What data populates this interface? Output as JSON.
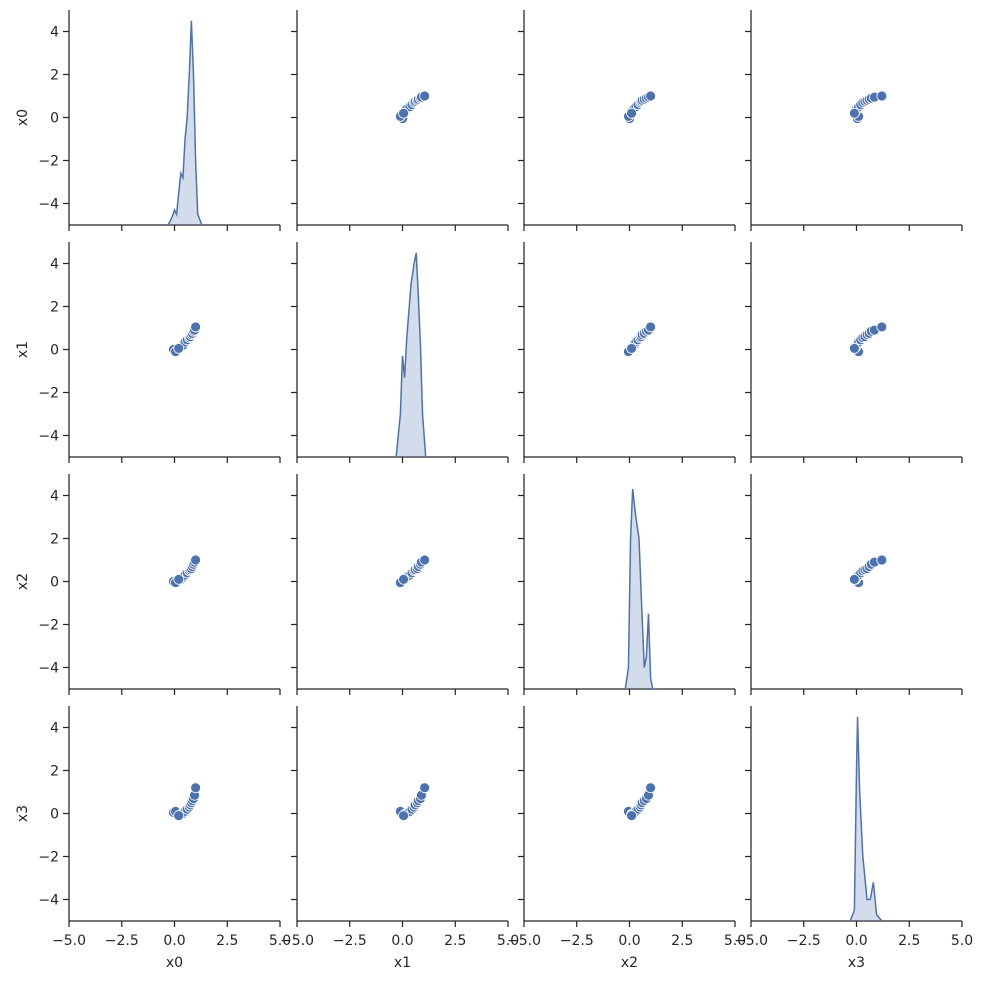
{
  "chart_data": {
    "type": "pairplot",
    "variables": [
      "x0",
      "x1",
      "x2",
      "x3"
    ],
    "color": "#4c72b0",
    "xlim": [
      -5,
      5
    ],
    "ylim": [
      -5,
      5
    ],
    "xticks": [
      {
        "value": -5,
        "label": "−5.0"
      },
      {
        "value": -2.5,
        "label": "−2.5"
      },
      {
        "value": 0,
        "label": "0.0"
      },
      {
        "value": 2.5,
        "label": "2.5"
      },
      {
        "value": 5,
        "label": "5.0"
      }
    ],
    "yticks": [
      {
        "value": -4,
        "label": "−4"
      },
      {
        "value": -2,
        "label": "−2"
      },
      0,
      2,
      4
    ],
    "samples": [
      {
        "name": "x0",
        "values": [
          -0.05,
          0.05,
          0.3,
          0.4,
          0.5,
          0.6,
          0.7,
          0.75,
          0.8,
          0.85,
          0.9,
          0.95,
          1.0,
          0.2
        ]
      },
      {
        "name": "x1",
        "values": [
          0.0,
          -0.1,
          0.1,
          0.2,
          0.35,
          0.45,
          0.55,
          0.6,
          0.7,
          0.75,
          0.85,
          0.9,
          1.05,
          0.05
        ]
      },
      {
        "name": "x2",
        "values": [
          0.0,
          -0.05,
          0.1,
          0.2,
          0.3,
          0.4,
          0.5,
          0.55,
          0.6,
          0.7,
          0.8,
          0.9,
          1.0,
          0.1
        ]
      },
      {
        "name": "x3",
        "values": [
          0.05,
          0.1,
          -0.05,
          0.0,
          0.1,
          0.2,
          0.3,
          0.4,
          0.5,
          0.6,
          0.7,
          0.85,
          1.2,
          -0.1
        ]
      }
    ],
    "kde": [
      {
        "x": [
          -0.3,
          -0.1,
          0,
          0.1,
          0.2,
          0.3,
          0.4,
          0.5,
          0.6,
          0.7,
          0.8,
          0.9,
          1.0,
          1.1,
          1.3
        ],
        "y": [
          -5,
          -4.6,
          -4.3,
          -4.5,
          -3.5,
          -2.6,
          -2.8,
          -1,
          0,
          2,
          4.5,
          2,
          -2,
          -4.5,
          -5
        ]
      },
      {
        "x": [
          -0.3,
          -0.1,
          0,
          0.1,
          0.2,
          0.4,
          0.55,
          0.65,
          0.75,
          0.85,
          0.95,
          1.1
        ],
        "y": [
          -5,
          -3,
          -0.3,
          -1.3,
          0.5,
          3,
          4,
          4.5,
          2.5,
          0.2,
          -3,
          -5
        ]
      },
      {
        "x": [
          -0.2,
          -0.05,
          0.05,
          0.15,
          0.3,
          0.45,
          0.55,
          0.7,
          0.8,
          0.9,
          1.0,
          1.1,
          1.3
        ],
        "y": [
          -5,
          -4,
          2,
          4.3,
          3,
          2,
          -0.5,
          -4,
          -3.5,
          -1.5,
          -4.5,
          -5,
          -5
        ]
      },
      {
        "x": [
          -0.3,
          -0.1,
          0,
          0.05,
          0.15,
          0.3,
          0.5,
          0.65,
          0.8,
          0.95,
          1.2
        ],
        "y": [
          -5,
          -4.5,
          2,
          4.5,
          1,
          -2,
          -4,
          -4,
          -3.2,
          -4.7,
          -5
        ]
      }
    ]
  }
}
